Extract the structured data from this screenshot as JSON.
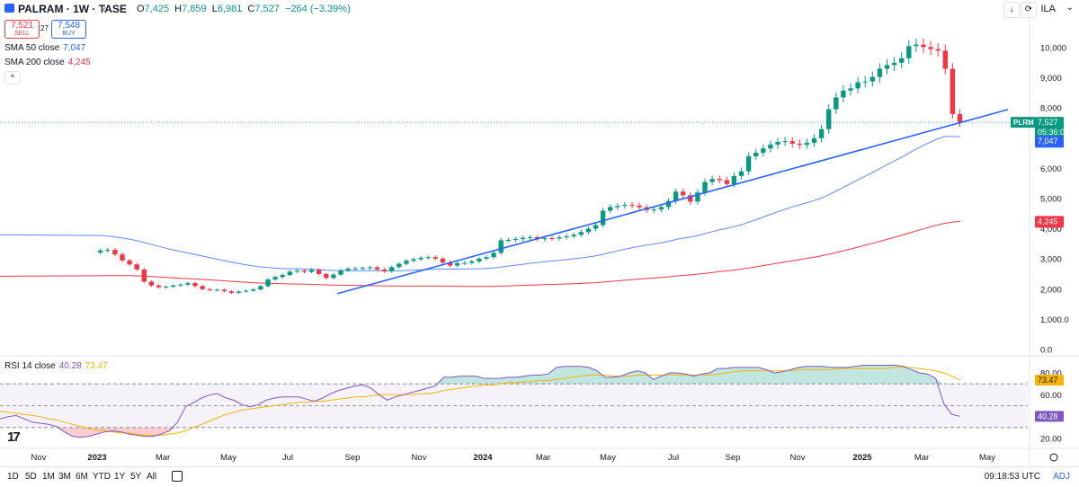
{
  "header": {
    "symbol": "PALRAM · 1W · TASE",
    "close_icon": "close-icon",
    "ohlc": [
      {
        "k": "O",
        "v": "7,425"
      },
      {
        "k": "H",
        "v": "7,859"
      },
      {
        "k": "L",
        "v": "6,981"
      },
      {
        "k": "C",
        "v": "7,527"
      }
    ],
    "change": "−264 (−3.39%)",
    "currency": "ILA",
    "colors": {
      "up": "#089981",
      "down": "#f23645",
      "accent": "#2962ff"
    }
  },
  "trade": {
    "sell_price": "7,521",
    "sell_label": "SELL",
    "spread": "27",
    "buy_price": "7,548",
    "buy_label": "BUY"
  },
  "indicators": {
    "sma50": {
      "label": "SMA 50 close",
      "value": "7,047",
      "color": "#2962ff"
    },
    "sma200": {
      "label": "SMA 200 close",
      "value": "4,245",
      "color": "#f23645"
    },
    "rsi": {
      "label": "RSI 14 close",
      "value": "40.28",
      "ma_value": "73.47",
      "color": "#7e57c2",
      "ma_color": "#f7b500"
    }
  },
  "chart_data": {
    "type": "candlestick",
    "interval": "1W",
    "y_ticks": [
      "10,000",
      "9,000",
      "8,000",
      "7,000",
      "6,000",
      "5,000",
      "4,000",
      "3,000",
      "2,000",
      "1,000.0",
      "0.0"
    ],
    "ylim": [
      0,
      10600
    ],
    "x_labels": [
      "Nov",
      "2023",
      "Mar",
      "May",
      "Jul",
      "Sep",
      "Nov",
      "2024",
      "Mar",
      "May",
      "Jul",
      "Sep",
      "Nov",
      "2025",
      "Mar",
      "May"
    ],
    "price_label": {
      "symbol": "PLRM",
      "price": "7,527",
      "countdown": "05:36:06"
    },
    "sma50_label": "7,047",
    "sma200_label": "4,245",
    "candles_close": [
      3280,
      3300,
      3150,
      2950,
      2820,
      2650,
      2250,
      2120,
      2060,
      2080,
      2120,
      2150,
      2200,
      2100,
      2000,
      1970,
      1980,
      1930,
      1880,
      1920,
      1950,
      1990,
      2100,
      2320,
      2400,
      2470,
      2580,
      2610,
      2570,
      2640,
      2500,
      2370,
      2480,
      2620,
      2680,
      2690,
      2700,
      2720,
      2650,
      2590,
      2730,
      2840,
      2940,
      2990,
      3040,
      3060,
      3010,
      2880,
      2780,
      2860,
      2870,
      2920,
      3010,
      3060,
      3200,
      3620,
      3630,
      3660,
      3700,
      3720,
      3660,
      3690,
      3680,
      3720,
      3750,
      3800,
      3890,
      4000,
      4120,
      4600,
      4720,
      4760,
      4790,
      4770,
      4710,
      4620,
      4640,
      4720,
      4920,
      5230,
      5110,
      4900,
      5200,
      5550,
      5650,
      5610,
      5480,
      5750,
      5900,
      6400,
      6520,
      6660,
      6790,
      6880,
      6900,
      6820,
      6780,
      6850,
      7000,
      7300,
      7960,
      8350,
      8580,
      8650,
      8850,
      8880,
      9030,
      9300,
      9420,
      9500,
      9650,
      10050,
      10100,
      10020,
      9950,
      9900,
      9300,
      7800,
      7527
    ],
    "sma50_start": 3800,
    "sma200_start": 2430,
    "trendline": {
      "from": {
        "week": 54,
        "price": 1850
      },
      "to": {
        "week": 128,
        "price": 7950
      }
    },
    "rsi": {
      "y_ticks": [
        "80.00",
        "60.00",
        "40.00",
        "20.00"
      ],
      "levels": [
        70,
        50,
        30
      ],
      "ylim": [
        15,
        85
      ],
      "value_label": "40.28",
      "ma_label": "73.47",
      "series": [
        38,
        40,
        41,
        38,
        35,
        34,
        33,
        31,
        26,
        22,
        21,
        22,
        24,
        26,
        27,
        26,
        24,
        23,
        22,
        22,
        24,
        27,
        35,
        49,
        53,
        57,
        60,
        61,
        57,
        55,
        51,
        49,
        51,
        55,
        57,
        58,
        58,
        58,
        56,
        54,
        57,
        61,
        64,
        66,
        68,
        69,
        66,
        60,
        55,
        58,
        60,
        62,
        64,
        66,
        68,
        76,
        76,
        77,
        77,
        77,
        75,
        75,
        75,
        76,
        76,
        77,
        78,
        78,
        79,
        85,
        86,
        86,
        86,
        85,
        82,
        76,
        76,
        77,
        80,
        82,
        80,
        74,
        77,
        80,
        80,
        79,
        77,
        79,
        80,
        84,
        84,
        85,
        85,
        85,
        85,
        83,
        80,
        81,
        83,
        85,
        86,
        86,
        86,
        85,
        85,
        85,
        86,
        87,
        87,
        87,
        87,
        87,
        86,
        83,
        80,
        79,
        75,
        52,
        42,
        40.28
      ],
      "ma_series": [
        45,
        44,
        43,
        42,
        41,
        40,
        38,
        37,
        35,
        33,
        31,
        29,
        28,
        27,
        26,
        25,
        25,
        24,
        23,
        23,
        23,
        24,
        25,
        27,
        30,
        33,
        36,
        39,
        42,
        44,
        46,
        47,
        48,
        49,
        50,
        51,
        52,
        53,
        53,
        54,
        54,
        55,
        56,
        57,
        58,
        58,
        59,
        60,
        60,
        60,
        60,
        60,
        61,
        61,
        62,
        64,
        65,
        66,
        67,
        68,
        69,
        69,
        70,
        71,
        71,
        72,
        72,
        73,
        73,
        74,
        75,
        76,
        77,
        78,
        78,
        78,
        77,
        77,
        77,
        78,
        78,
        78,
        78,
        78,
        78,
        78,
        78,
        78,
        78,
        79,
        80,
        81,
        82,
        82,
        82,
        82,
        82,
        82,
        82,
        83,
        83,
        83,
        83,
        83,
        84,
        84,
        84,
        84,
        84,
        84,
        84,
        85,
        85,
        85,
        84,
        83,
        82,
        80,
        77,
        73.47
      ]
    }
  },
  "bottom": {
    "ranges": [
      "1D",
      "5D",
      "1M",
      "3M",
      "6M",
      "YTD",
      "1Y",
      "5Y",
      "All"
    ],
    "time": "09:18:53 UTC",
    "adj": "ADJ"
  }
}
